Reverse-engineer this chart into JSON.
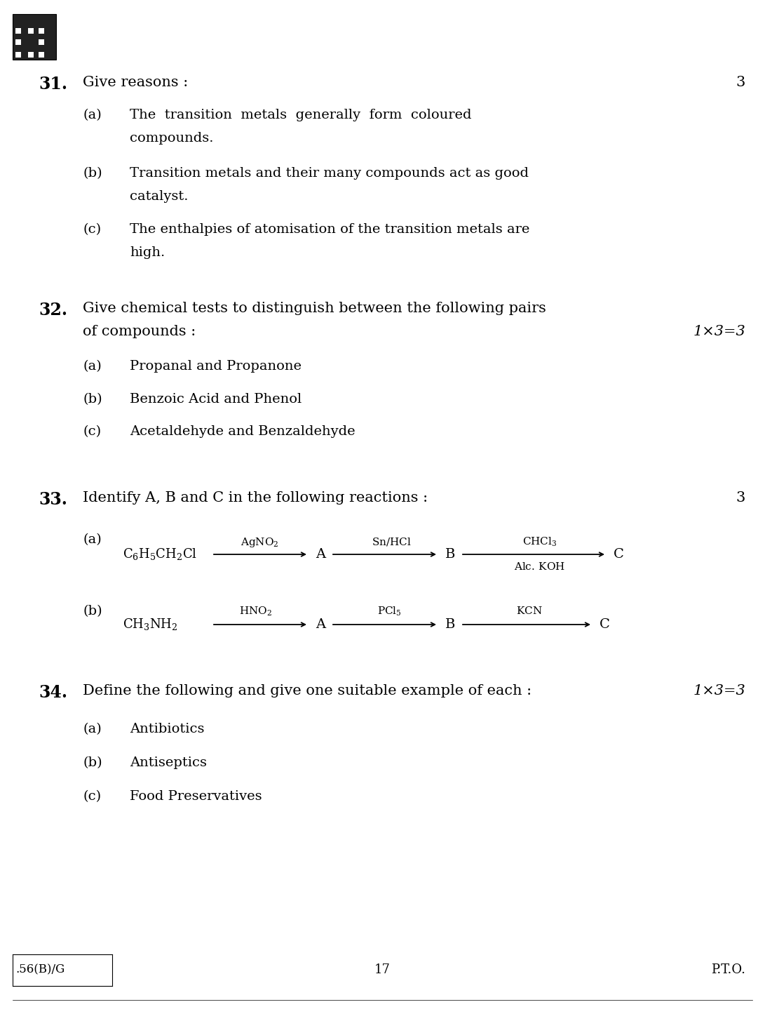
{
  "bg_color": "#ffffff",
  "text_color": "#000000",
  "page_width": 10.91,
  "page_height": 14.45,
  "font_family": "DejaVu Serif",
  "q31_number": "31.",
  "q31_text": "Give reasons :",
  "q31_marks": "3",
  "q31a_label": "(a)",
  "q31a_line1": "The  transition  metals  generally  form  coloured",
  "q31a_line2": "compounds.",
  "q31b_label": "(b)",
  "q31b_line1": "Transition metals and their many compounds act as good",
  "q31b_line2": "catalyst.",
  "q31c_label": "(c)",
  "q31c_line1": "The enthalpies of atomisation of the transition metals are",
  "q31c_line2": "high.",
  "q32_number": "32.",
  "q32_line1": "Give chemical tests to distinguish between the following pairs",
  "q32_line2": "of compounds :",
  "q32_marks": "1×3=3",
  "q32a_label": "(a)",
  "q32a_text": "Propanal and Propanone",
  "q32b_label": "(b)",
  "q32b_text": "Benzoic Acid and Phenol",
  "q32c_label": "(c)",
  "q32c_text": "Acetaldehyde and Benzaldehyde",
  "q33_number": "33.",
  "q33_text": "Identify A, B and C in the following reactions :",
  "q33_marks": "3",
  "q33a_label": "(a)",
  "q33a_reactant": "$C_6H_5CH_2Cl$",
  "q33a_r1": "$AgNO_2$",
  "q33a_r2": "$Sn/HCl$",
  "q33a_r3top": "$CHCl_3$",
  "q33a_r3bot": "$Alc.\\,KOH$",
  "q33b_label": "(b)",
  "q33b_reactant": "$CH_3NH_2$",
  "q33b_r1": "$HNO_2$",
  "q33b_r2": "$PCl_5$",
  "q33b_r3": "$KCN$",
  "q34_number": "34.",
  "q34_text": "Define the following and give one suitable example of each :",
  "q34_marks": "1×3=3",
  "q34a_label": "(a)",
  "q34a_text": "Antibiotics",
  "q34b_label": "(b)",
  "q34b_text": "Antiseptics",
  "q34c_label": "(c)",
  "q34c_text": "Food Preservatives",
  "footer_left": ".56(B)/G",
  "footer_center": "17",
  "footer_right": "P.T.O."
}
